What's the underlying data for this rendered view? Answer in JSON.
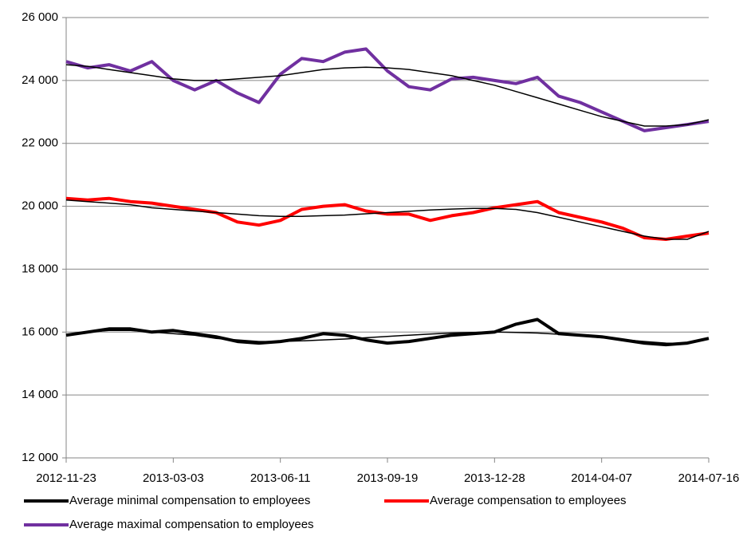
{
  "chart_data": {
    "type": "line",
    "x": [
      "2012-11-23",
      "2012-12-13",
      "2013-01-02",
      "2013-01-22",
      "2013-02-11",
      "2013-03-03",
      "2013-03-23",
      "2013-04-12",
      "2013-05-02",
      "2013-05-22",
      "2013-06-11",
      "2013-07-01",
      "2013-07-21",
      "2013-08-10",
      "2013-08-30",
      "2013-09-19",
      "2013-10-09",
      "2013-10-29",
      "2013-11-18",
      "2013-12-08",
      "2013-12-28",
      "2014-01-17",
      "2014-02-06",
      "2014-02-26",
      "2014-03-18",
      "2014-04-07",
      "2014-04-27",
      "2014-05-17",
      "2014-06-06",
      "2014-06-26",
      "2014-07-16"
    ],
    "series": [
      {
        "name": "Average minimal compensation to employees",
        "color": "#000000",
        "width": 4,
        "values": [
          15900,
          16000,
          16100,
          16100,
          16000,
          16050,
          15950,
          15850,
          15700,
          15650,
          15700,
          15800,
          15950,
          15900,
          15750,
          15650,
          15700,
          15800,
          15900,
          15950,
          16000,
          16250,
          16400,
          15950,
          15900,
          15850,
          15750,
          15650,
          15600,
          15650,
          15800
        ]
      },
      {
        "name": "Average compensation to employees",
        "color": "#ff0000",
        "width": 4,
        "values": [
          20250,
          20200,
          20250,
          20150,
          20100,
          20000,
          19900,
          19800,
          19500,
          19400,
          19550,
          19900,
          20000,
          20050,
          19850,
          19750,
          19750,
          19550,
          19700,
          19800,
          19950,
          20050,
          20150,
          19800,
          19650,
          19500,
          19300,
          19000,
          18950,
          19050,
          19150
        ]
      },
      {
        "name": "Average maximal compensation to employees",
        "color": "#7030a0",
        "width": 4,
        "values": [
          24600,
          24400,
          24500,
          24300,
          24600,
          24000,
          23700,
          24000,
          23600,
          23300,
          24200,
          24700,
          24600,
          24900,
          25000,
          24300,
          23800,
          23700,
          24050,
          24100,
          24000,
          23900,
          24100,
          23500,
          23300,
          23000,
          22700,
          22400,
          22500,
          22600,
          22700
        ]
      },
      {
        "color": "#000000",
        "width": 1.5,
        "values": [
          15900,
          16000,
          16050,
          16050,
          16000,
          15950,
          15900,
          15800,
          15750,
          15700,
          15700,
          15720,
          15750,
          15780,
          15820,
          15860,
          15900,
          15940,
          15970,
          15990,
          16000,
          15990,
          15970,
          15930,
          15880,
          15820,
          15760,
          15700,
          15650,
          15640,
          15800
        ]
      },
      {
        "color": "#000000",
        "width": 1.5,
        "values": [
          20200,
          20150,
          20100,
          20050,
          19950,
          19900,
          19850,
          19800,
          19750,
          19700,
          19680,
          19680,
          19700,
          19720,
          19760,
          19800,
          19840,
          19880,
          19910,
          19930,
          19930,
          19900,
          19800,
          19650,
          19500,
          19350,
          19200,
          19050,
          18950,
          18950,
          19200
        ]
      },
      {
        "color": "#000000",
        "width": 1.5,
        "values": [
          24500,
          24450,
          24350,
          24250,
          24150,
          24050,
          24000,
          24000,
          24050,
          24100,
          24150,
          24250,
          24350,
          24400,
          24420,
          24400,
          24350,
          24250,
          24150,
          24000,
          23850,
          23650,
          23450,
          23250,
          23050,
          22850,
          22700,
          22550,
          22550,
          22600,
          22750
        ]
      }
    ],
    "xlim": [
      "2012-11-23",
      "2014-07-16"
    ],
    "xticks": [
      "2012-11-23",
      "2013-03-03",
      "2013-06-11",
      "2013-09-19",
      "2013-12-28",
      "2014-04-07",
      "2014-07-16"
    ],
    "ylim": [
      12000,
      26000
    ],
    "yticks": [
      {
        "value": 12000,
        "label": "12 000"
      },
      {
        "value": 14000,
        "label": "14 000"
      },
      {
        "value": 16000,
        "label": "16 000"
      },
      {
        "value": 18000,
        "label": "18 000"
      },
      {
        "value": 20000,
        "label": "20 000"
      },
      {
        "value": 22000,
        "label": "22 000"
      },
      {
        "value": 24000,
        "label": "24 000"
      },
      {
        "value": 26000,
        "label": "26 000"
      }
    ],
    "grid": true,
    "legend": "bottom"
  }
}
